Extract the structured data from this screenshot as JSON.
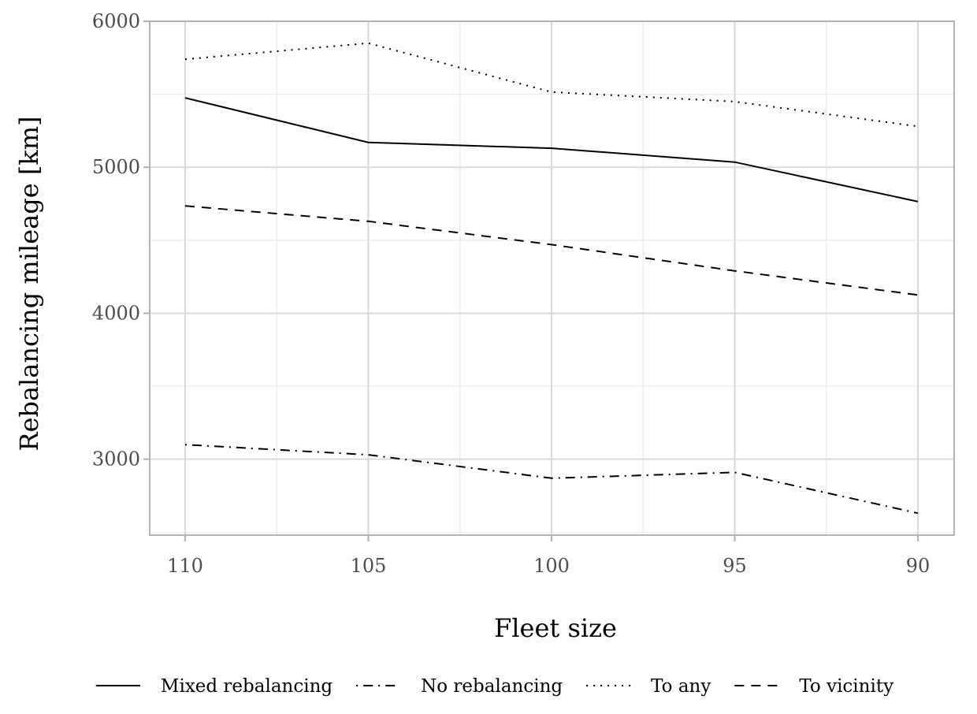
{
  "chart_data": {
    "type": "line",
    "title": "",
    "xlabel": "Fleet size",
    "ylabel": "Rebalancing mileage [km]",
    "x": [
      110,
      105,
      100,
      95,
      90
    ],
    "x_tick_labels": [
      "110",
      "105",
      "100",
      "95",
      "90"
    ],
    "x_reversed": true,
    "y_ticks": [
      3000,
      4000,
      5000,
      6000
    ],
    "y_tick_labels": [
      "3000",
      "4000",
      "5000",
      "6000"
    ],
    "ylim": [
      2480,
      6000
    ],
    "grid": true,
    "legend_position": "bottom",
    "series": [
      {
        "name": "Mixed rebalancing",
        "linestyle": "solid",
        "values": [
          5475,
          5170,
          5130,
          5035,
          4765
        ]
      },
      {
        "name": "No rebalancing",
        "linestyle": "dashdot",
        "values": [
          3100,
          3030,
          2870,
          2910,
          2630
        ]
      },
      {
        "name": "To any",
        "linestyle": "dotted",
        "values": [
          5740,
          5850,
          5515,
          5450,
          5280
        ]
      },
      {
        "name": "To vicinity",
        "linestyle": "dashed",
        "values": [
          4735,
          4630,
          4470,
          4290,
          4125
        ]
      }
    ],
    "colors": {
      "line": "#000000",
      "grid_major": "#d9d9d9",
      "grid_minor": "#ebebeb",
      "panel_border": "#b3b3b3",
      "tick_text": "#4d4d4d"
    }
  }
}
